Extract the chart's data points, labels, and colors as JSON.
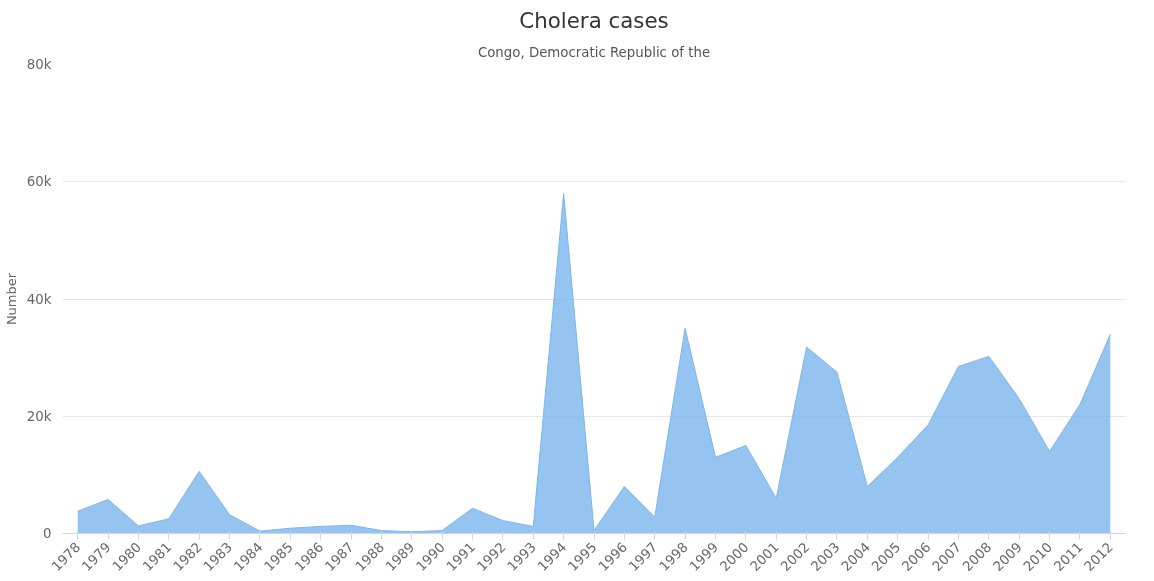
{
  "chart_data": {
    "type": "area",
    "title": "Cholera cases",
    "subtitle": "Congo, Democratic Republic of the",
    "ylabel": "Number",
    "categories": [
      "1978",
      "1979",
      "1980",
      "1981",
      "1982",
      "1983",
      "1984",
      "1985",
      "1986",
      "1987",
      "1988",
      "1989",
      "1990",
      "1991",
      "1992",
      "1993",
      "1994",
      "1995",
      "1996",
      "1997",
      "1998",
      "1999",
      "2000",
      "2001",
      "2002",
      "2003",
      "2004",
      "2005",
      "2006",
      "2007",
      "2008",
      "2009",
      "2010",
      "2011",
      "2012"
    ],
    "series": [
      {
        "color": "#7cb5ec",
        "values": [
          3800,
          5800,
          1300,
          2500,
          10600,
          3200,
          400,
          900,
          1200,
          1400,
          500,
          300,
          500,
          4300,
          2200,
          1200,
          58000,
          500,
          8000,
          2800,
          35000,
          13000,
          15000,
          6000,
          31800,
          27500,
          8000,
          13000,
          18500,
          28500,
          30200,
          23000,
          14000,
          22000,
          34000
        ]
      }
    ],
    "ylim": [
      0,
      80000
    ],
    "yticks": [
      {
        "value": 0,
        "label": "0"
      },
      {
        "value": 20000,
        "label": "20k"
      },
      {
        "value": 40000,
        "label": "40k"
      },
      {
        "value": 60000,
        "label": "60k"
      },
      {
        "value": 80000,
        "label": "80k"
      }
    ],
    "grid": "y"
  }
}
